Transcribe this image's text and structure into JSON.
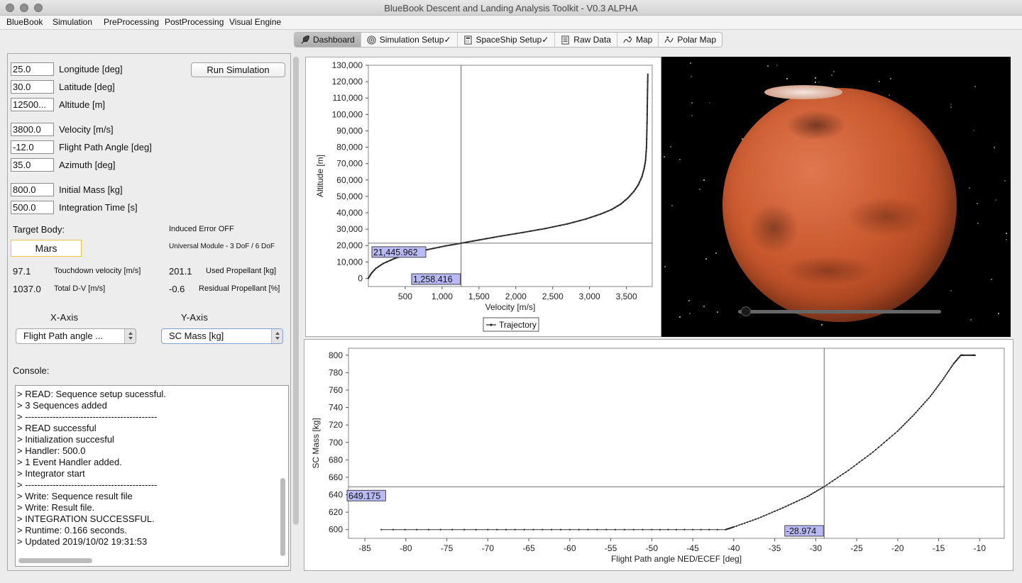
{
  "window": {
    "title": "BlueBook Descent and Landing Analysis Toolkit - V0.3 ALPHA"
  },
  "menubar": [
    "BlueBook",
    "Simulation",
    "PreProcessing",
    "PostProcessing",
    "Visual Engine"
  ],
  "tabs": [
    {
      "label": "Dashboard",
      "icon": "rocket-icon",
      "active": true
    },
    {
      "label": "Simulation Setup✓",
      "icon": "target-icon",
      "active": false
    },
    {
      "label": "SpaceShip Setup✓",
      "icon": "calculator-icon",
      "active": false
    },
    {
      "label": "Raw Data",
      "icon": "document-icon",
      "active": false
    },
    {
      "label": "Map",
      "icon": "map-icon",
      "active": false
    },
    {
      "label": "Polar Map",
      "icon": "polar-map-icon",
      "active": false
    }
  ],
  "inputs": {
    "longitude": {
      "value": "25.0",
      "label": "Longitude [deg]"
    },
    "latitude": {
      "value": "30.0",
      "label": "Latitude [deg]"
    },
    "altitude": {
      "value": "12500...",
      "label": "Altitude [m]"
    },
    "velocity": {
      "value": "3800.0",
      "label": "Velocity [m/s]"
    },
    "fpa": {
      "value": "-12.0",
      "label": "Flight Path Angle [deg]"
    },
    "azimuth": {
      "value": "35.0",
      "label": "Azimuth [deg]"
    },
    "mass": {
      "value": "800.0",
      "label": "Initial Mass [kg]"
    },
    "time": {
      "value": "500.0",
      "label": "Integration Time [s]"
    }
  },
  "run_button": "Run Simulation",
  "target": {
    "label": "Target Body:",
    "value": "Mars"
  },
  "induced_error": "Induced Error OFF",
  "module": "Universal Module - 3 DoF / 6 DoF",
  "results": {
    "touchdown_velocity": {
      "value": "97.1",
      "label": "Touchdown velocity [m/s]"
    },
    "used_propellant": {
      "value": "201.1",
      "label": "Used Propellant [kg]"
    },
    "total_dv": {
      "value": "1037.0",
      "label": "Total D-V [m/s]"
    },
    "residual_propellant": {
      "value": "-0.6",
      "label": "Residual Propellant [%]"
    }
  },
  "axes_selectors": {
    "x_title": "X-Axis",
    "y_title": "Y-Axis",
    "x_value": "Flight Path angle ...",
    "y_value": "SC Mass [kg]"
  },
  "console": {
    "label": "Console:",
    "lines": [
      "> READ: Sequence setup sucessful.",
      "> 3 Sequences added",
      "> -------------------------------------------",
      "> READ successful",
      "> Initialization succesful",
      "> Handler: 500.0",
      "> 1 Event Handler added.",
      "> Integrator start",
      "> -------------------------------------------",
      "> Write: Sequence result file",
      "> Write: Result file.",
      "> INTEGRATION SUCCESSFUL.",
      "> Runtime: 0.166 seconds.",
      "> Updated 2019/10/02 19:31:53"
    ]
  },
  "chart_data": [
    {
      "type": "line",
      "xlabel": "Velocity [m/s]",
      "ylabel": "Altitude [m]",
      "xlim": [
        0,
        3850
      ],
      "ylim": [
        -5000,
        130000
      ],
      "xticks": [
        500,
        1000,
        1500,
        2000,
        2500,
        3000,
        3500
      ],
      "xtick_labels": [
        "500",
        "1,000",
        "1,500",
        "2,000",
        "2,500",
        "3,000",
        "3,500"
      ],
      "yticks": [
        0,
        10000,
        20000,
        30000,
        40000,
        50000,
        60000,
        70000,
        80000,
        90000,
        100000,
        110000,
        120000,
        130000
      ],
      "ytick_labels": [
        "0",
        "10,000",
        "20,000",
        "30,000",
        "40,000",
        "50,000",
        "60,000",
        "70,000",
        "80,000",
        "90,000",
        "100,000",
        "110,000",
        "120,000",
        "130,000"
      ],
      "legend": "Trajectory",
      "legend_position": "bottom-center",
      "crosshair": {
        "x": 1258.416,
        "y": 21445.962,
        "x_label": "1,258.416",
        "y_label": "21,445.962"
      },
      "series": [
        {
          "name": "Trajectory",
          "x": [
            0,
            40,
            100,
            200,
            350,
            550,
            800,
            1050,
            1258,
            1500,
            1800,
            2100,
            2400,
            2700,
            2950,
            3150,
            3300,
            3420,
            3520,
            3600,
            3660,
            3710,
            3740,
            3760,
            3772,
            3780,
            3785,
            3790
          ],
          "y": [
            0,
            3000,
            6000,
            9000,
            12000,
            15000,
            17500,
            19800,
            21446,
            23400,
            25800,
            28000,
            30400,
            33200,
            36200,
            39200,
            42000,
            45200,
            49000,
            53000,
            57000,
            62000,
            67000,
            72000,
            80000,
            95000,
            110000,
            125000
          ]
        }
      ]
    },
    {
      "type": "line",
      "xlabel": "Flight Path angle NED/ECEF [deg]",
      "ylabel": "SC Mass [kg]",
      "xlim": [
        -87,
        -7
      ],
      "ylim": [
        590,
        808
      ],
      "xticks": [
        -85,
        -80,
        -75,
        -70,
        -65,
        -60,
        -55,
        -50,
        -45,
        -40,
        -35,
        -30,
        -25,
        -20,
        -15,
        -10
      ],
      "yticks": [
        600,
        620,
        640,
        660,
        680,
        700,
        720,
        740,
        760,
        780,
        800
      ],
      "crosshair": {
        "x": -28.974,
        "y": 649.175,
        "x_label": "-28.974",
        "y_label": "649.175"
      },
      "series": [
        {
          "name": "",
          "x": [
            -83,
            -70,
            -60,
            -50,
            -41,
            -40,
            -37,
            -34,
            -31,
            -28.974,
            -26,
            -23,
            -20,
            -18,
            -16,
            -14.5,
            -13.2,
            -12.3,
            -12,
            -11,
            -10.5
          ],
          "y": [
            600,
            600,
            600,
            600,
            600,
            603,
            613,
            625,
            638,
            649.2,
            668,
            689,
            713,
            732,
            753,
            772,
            790,
            800,
            800,
            800,
            800
          ]
        }
      ]
    }
  ]
}
